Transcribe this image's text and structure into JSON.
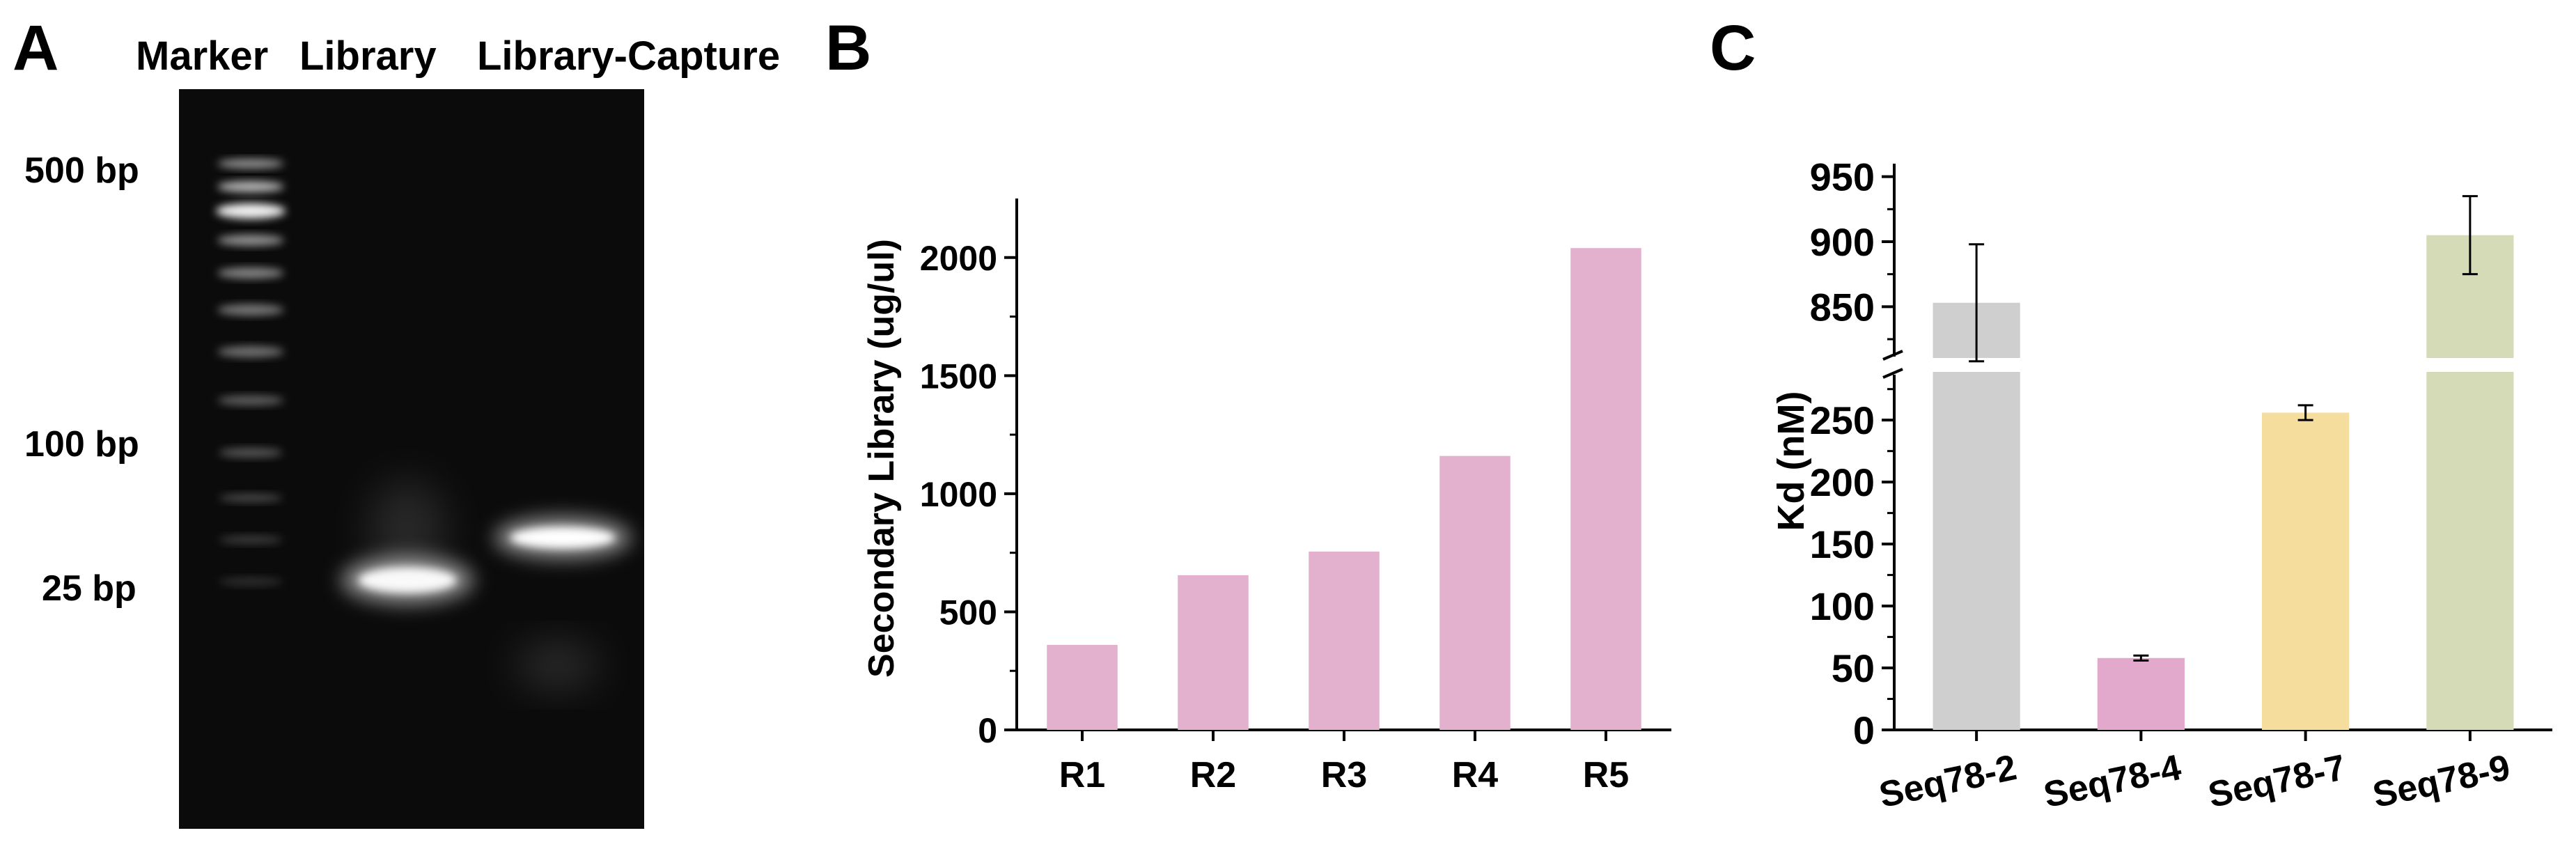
{
  "panels": {
    "a": "A",
    "b": "B",
    "c": "C"
  },
  "gel": {
    "lane_labels": [
      "Marker",
      "Library",
      "Library-Capture"
    ],
    "size_labels": [
      "500 bp",
      "100 bp",
      "25 bp"
    ]
  },
  "chart_data": [
    {
      "type": "bar",
      "categories": [
        "R1",
        "R2",
        "R3",
        "R4",
        "R5"
      ],
      "values": [
        360,
        655,
        755,
        1160,
        2040
      ],
      "title": "",
      "xlabel": "",
      "ylabel": "Secondary Library  (ug/ul)",
      "ylim": [
        0,
        2250
      ],
      "yticks": [
        0,
        500,
        1000,
        1500,
        2000
      ],
      "grid": false,
      "color": "#e3b0ce"
    },
    {
      "type": "bar",
      "categories": [
        "Seq78-2",
        "Seq78-4",
        "Seq78-7",
        "Seq78-9"
      ],
      "values": [
        853,
        58,
        256,
        905
      ],
      "errors": [
        45,
        2,
        6,
        30
      ],
      "colors": [
        "#cfcfcf",
        "#e3a9cd",
        "#f5dd9e",
        "#d4dbb6"
      ],
      "title": "",
      "xlabel": "",
      "ylabel": "Kd (nM)",
      "axis_break": true,
      "ylim_lower": [
        0,
        290
      ],
      "ylim_upper": [
        810,
        960
      ],
      "yticks": [
        0,
        50,
        100,
        150,
        200,
        250,
        850,
        900,
        950
      ],
      "grid": false
    }
  ]
}
